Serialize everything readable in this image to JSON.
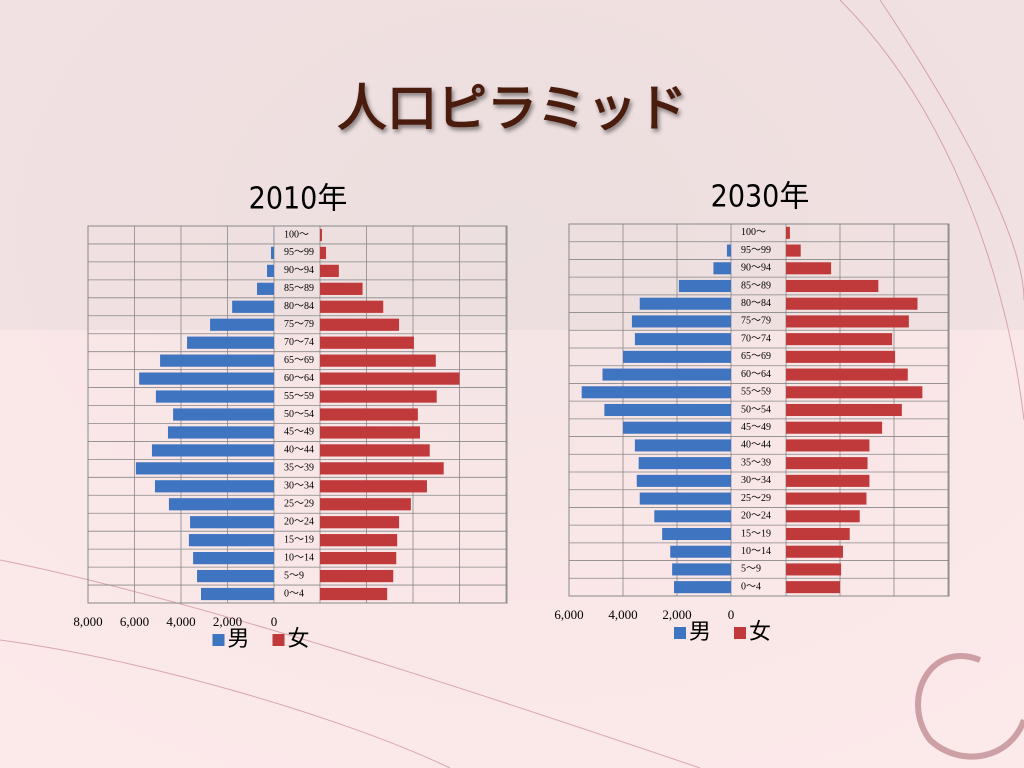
{
  "title": "人口ピラミッド",
  "chart_data": [
    {
      "type": "bar",
      "title": "2010年",
      "categories": [
        "0～4",
        "5～9",
        "10～14",
        "15～19",
        "20～24",
        "25～29",
        "30～34",
        "35～39",
        "40～44",
        "45～49",
        "50～54",
        "55～59",
        "60～64",
        "65～69",
        "70～74",
        "75～79",
        "80～84",
        "85～89",
        "90～94",
        "95～99",
        "100～"
      ],
      "series": [
        {
          "name": "男",
          "color": "#3f74c1",
          "values": [
            3140,
            3310,
            3480,
            3660,
            3610,
            4520,
            5120,
            5940,
            5250,
            4560,
            4340,
            5080,
            5800,
            4900,
            3740,
            2750,
            1800,
            730,
            300,
            130,
            10
          ]
        },
        {
          "name": "女",
          "color": "#c0393b",
          "values": [
            2890,
            3150,
            3280,
            3320,
            3400,
            3910,
            4600,
            5320,
            4720,
            4300,
            4210,
            5020,
            6000,
            4980,
            4040,
            3400,
            2720,
            1830,
            810,
            260,
            85
          ]
        }
      ],
      "xlim": [
        0,
        8000
      ],
      "xticks": [
        {
          "value": 8000,
          "label": "8,000"
        },
        {
          "value": 6000,
          "label": "6,000"
        },
        {
          "value": 4000,
          "label": "4,000"
        },
        {
          "value": 2000,
          "label": "2,000"
        },
        0
      ],
      "grid": true,
      "legend": "bottom"
    },
    {
      "type": "bar",
      "title": "2030年",
      "categories": [
        "0～4",
        "5～9",
        "10～14",
        "15～19",
        "20～24",
        "25～29",
        "30～34",
        "35～39",
        "40～44",
        "45～49",
        "50～54",
        "55～59",
        "60～64",
        "65～69",
        "70～74",
        "75～79",
        "80～84",
        "85～89",
        "90～94",
        "95～99",
        "100～"
      ],
      "series": [
        {
          "name": "男",
          "color": "#3f74c1",
          "values": [
            2110,
            2180,
            2250,
            2550,
            2840,
            3380,
            3490,
            3420,
            3560,
            4000,
            4690,
            5530,
            4760,
            4000,
            3560,
            3670,
            3380,
            1930,
            650,
            150,
            0
          ]
        },
        {
          "name": "女",
          "color": "#c0393b",
          "values": [
            2000,
            2040,
            2110,
            2360,
            2730,
            2980,
            3090,
            3020,
            3090,
            3560,
            4290,
            5050,
            4510,
            4040,
            3930,
            4550,
            4870,
            3420,
            1670,
            545,
            145
          ]
        }
      ],
      "xlim": [
        0,
        6000
      ],
      "xticks": [
        {
          "value": 6000,
          "label": "6,000"
        },
        {
          "value": 4000,
          "label": "4,000"
        },
        {
          "value": 2000,
          "label": "2,000"
        },
        0
      ],
      "grid": true,
      "legend": "bottom"
    }
  ]
}
